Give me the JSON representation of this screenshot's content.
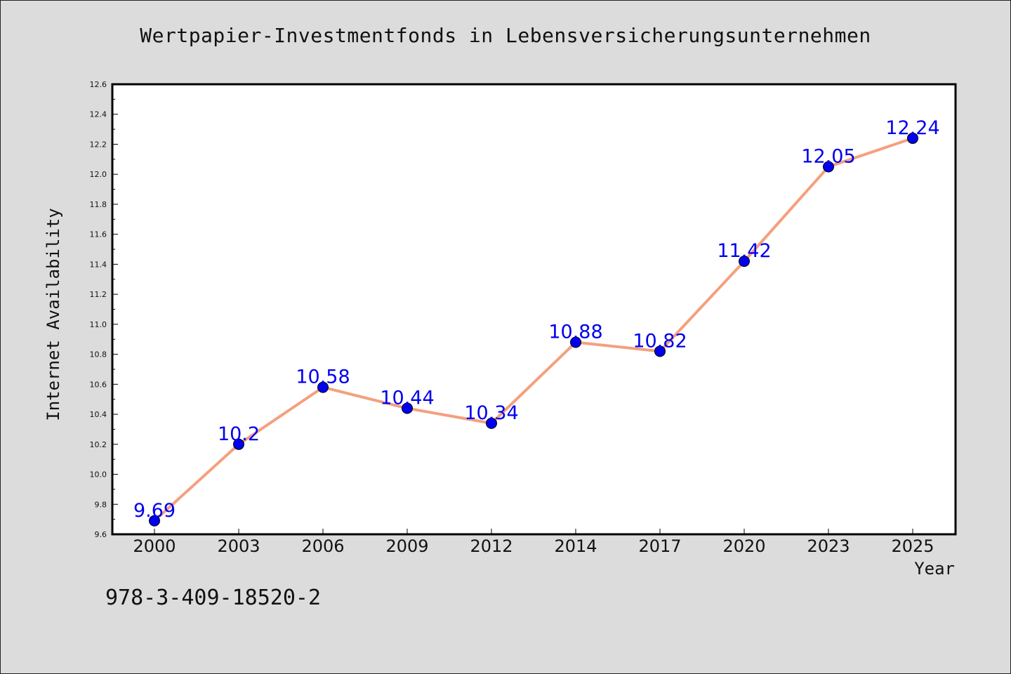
{
  "title": "Wertpapier-Investmentfonds in Lebensversicherungsunternehmen",
  "footer_code": "978-3-409-18520-2",
  "colors": {
    "background": "#dcdcdc",
    "plot_area": "#ffffff",
    "line": "#f4a07e",
    "marker": "#0000ee",
    "label": "#0000ee"
  },
  "chart_data": {
    "type": "line",
    "title": "Wertpapier-Investmentfonds in Lebensversicherungsunternehmen",
    "xlabel": "Year",
    "ylabel": "Internet Availability",
    "categories": [
      "2000",
      "2003",
      "2006",
      "2009",
      "2012",
      "2014",
      "2017",
      "2020",
      "2023",
      "2025"
    ],
    "series": [
      {
        "values": [
          9.69,
          10.2,
          10.58,
          10.44,
          10.34,
          10.88,
          10.82,
          11.42,
          12.05,
          12.24
        ],
        "data_labels": [
          "9.69",
          "10.2",
          "10.58",
          "10.44",
          "10.34",
          "10.88",
          "10.82",
          "11.42",
          "12.05",
          "12.24"
        ]
      }
    ],
    "ylim": [
      9.6,
      12.6
    ],
    "yticks": [
      "9.6",
      "9.8",
      "10.0",
      "10.2",
      "10.4",
      "10.6",
      "10.8",
      "11.0",
      "11.2",
      "11.4",
      "11.6",
      "11.8",
      "12.0",
      "12.2",
      "12.4",
      "12.6"
    ],
    "grid": false,
    "legend": "none"
  }
}
